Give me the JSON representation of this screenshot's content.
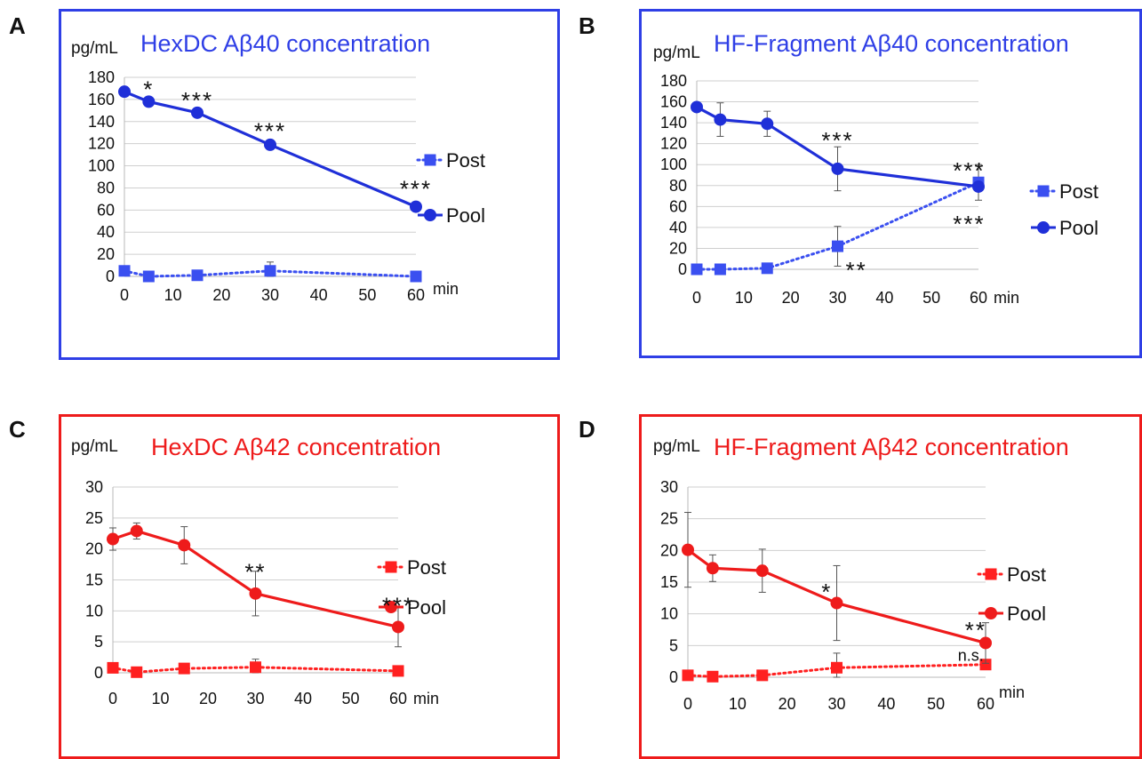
{
  "panels": [
    {
      "letter": "A",
      "ylabel": "pg/mL",
      "title": "HexDC Aβ40 concentration",
      "xlabel": "min",
      "accent": "#2f3fe6",
      "chart_data": {
        "type": "line",
        "title": "HexDC Aβ40 concentration",
        "ylabel": "pg/mL",
        "xlabel": "min",
        "xlim": [
          0,
          60
        ],
        "ylim": [
          0,
          180
        ],
        "xticks": [
          0,
          10,
          20,
          30,
          40,
          50,
          60
        ],
        "yticks": [
          0,
          20,
          40,
          60,
          80,
          100,
          120,
          140,
          160,
          180
        ],
        "grid": true,
        "legend": "right",
        "series": [
          {
            "name": "Post",
            "style": "dotted",
            "marker": "square",
            "color": "#3a4ff0",
            "x": [
              0,
              5,
              15,
              30,
              60
            ],
            "y": [
              5,
              0,
              1,
              5,
              0
            ],
            "err": [
              0,
              0,
              0,
              8,
              0
            ]
          },
          {
            "name": "Pool",
            "style": "solid",
            "marker": "circle",
            "color": "#1f2fd8",
            "x": [
              0,
              5,
              15,
              30,
              60
            ],
            "y": [
              167,
              158,
              148,
              119,
              63
            ],
            "err": [
              0,
              0,
              0,
              0,
              0
            ]
          }
        ],
        "annotations": [
          {
            "text": "*",
            "x": 5,
            "y": 170
          },
          {
            "text": "***",
            "x": 15,
            "y": 160
          },
          {
            "text": "***",
            "x": 30,
            "y": 132
          },
          {
            "text": "***",
            "x": 60,
            "y": 80
          }
        ]
      }
    },
    {
      "letter": "B",
      "ylabel": "pg/mL",
      "title": "HF-Fragment Aβ40 concentration",
      "xlabel": "min",
      "accent": "#2f3fe6",
      "chart_data": {
        "type": "line",
        "title": "HF-Fragment Aβ40 concentration",
        "ylabel": "pg/mL",
        "xlabel": "min",
        "xlim": [
          0,
          60
        ],
        "ylim": [
          0,
          180
        ],
        "xticks": [
          0,
          10,
          20,
          30,
          40,
          50,
          60
        ],
        "yticks": [
          0,
          20,
          40,
          60,
          80,
          100,
          120,
          140,
          160,
          180
        ],
        "grid": true,
        "legend": "right",
        "series": [
          {
            "name": "Post",
            "style": "dotted",
            "marker": "square",
            "color": "#3a4ff0",
            "x": [
              0,
              5,
              15,
              30,
              60
            ],
            "y": [
              0,
              0,
              1,
              22,
              83
            ],
            "err": [
              0,
              0,
              2,
              19,
              17
            ]
          },
          {
            "name": "Pool",
            "style": "solid",
            "marker": "circle",
            "color": "#1f2fd8",
            "x": [
              0,
              5,
              15,
              30,
              60
            ],
            "y": [
              155,
              143,
              139,
              96,
              79
            ],
            "err": [
              3,
              16,
              12,
              21,
              0
            ]
          }
        ],
        "annotations": [
          {
            "text": "***",
            "x": 30,
            "y": 124
          },
          {
            "text": "***",
            "x": 58,
            "y": 95
          },
          {
            "text": "***",
            "x": 58,
            "y": 44
          },
          {
            "text": "**",
            "x": 34,
            "y": 0
          }
        ]
      }
    },
    {
      "letter": "C",
      "ylabel": "pg/mL",
      "title": "HexDC Aβ42 concentration",
      "xlabel": "min",
      "accent": "#ee1b1b",
      "chart_data": {
        "type": "line",
        "title": "HexDC Aβ42 concentration",
        "ylabel": "pg/mL",
        "xlabel": "min",
        "xlim": [
          0,
          60
        ],
        "ylim": [
          0,
          30
        ],
        "xticks": [
          0,
          10,
          20,
          30,
          40,
          50,
          60
        ],
        "yticks": [
          0,
          5,
          10,
          15,
          20,
          25,
          30
        ],
        "grid": true,
        "legend": "right",
        "series": [
          {
            "name": "Post",
            "style": "dotted",
            "marker": "square",
            "color": "#ff2020",
            "x": [
              0,
              5,
              15,
              30,
              60
            ],
            "y": [
              0.8,
              0.1,
              0.7,
              0.9,
              0.3
            ],
            "err": [
              0,
              0,
              0,
              1.3,
              0
            ]
          },
          {
            "name": "Pool",
            "style": "solid",
            "marker": "circle",
            "color": "#ee1b1b",
            "x": [
              0,
              5,
              15,
              30,
              60
            ],
            "y": [
              21.6,
              22.9,
              20.6,
              12.8,
              7.4
            ],
            "err": [
              1.8,
              1.3,
              3.0,
              3.6,
              3.2
            ]
          }
        ],
        "annotations": [
          {
            "text": "**",
            "x": 30,
            "y": 16.4
          },
          {
            "text": "***",
            "x": 60,
            "y": 11.0
          }
        ]
      }
    },
    {
      "letter": "D",
      "ylabel": "pg/mL",
      "title": "HF-Fragment Aβ42 concentration",
      "xlabel": "min",
      "accent": "#ee1b1b",
      "chart_data": {
        "type": "line",
        "title": "HF-Fragment Aβ42 concentration",
        "ylabel": "pg/mL",
        "xlabel": "min",
        "xlim": [
          0,
          60
        ],
        "ylim": [
          0,
          30
        ],
        "xticks": [
          0,
          10,
          20,
          30,
          40,
          50,
          60
        ],
        "yticks": [
          0,
          5,
          10,
          15,
          20,
          25,
          30
        ],
        "grid": true,
        "legend": "right",
        "series": [
          {
            "name": "Post",
            "style": "dotted",
            "marker": "square",
            "color": "#ff2020",
            "x": [
              0,
              5,
              15,
              30,
              60
            ],
            "y": [
              0.3,
              0.1,
              0.3,
              1.5,
              2.0
            ],
            "err": [
              0,
              0,
              0,
              2.3,
              0.8
            ]
          },
          {
            "name": "Pool",
            "style": "solid",
            "marker": "circle",
            "color": "#ee1b1b",
            "x": [
              0,
              5,
              15,
              30,
              60
            ],
            "y": [
              20.1,
              17.2,
              16.8,
              11.7,
              5.4
            ],
            "err": [
              5.9,
              2.1,
              3.4,
              5.9,
              3.2
            ]
          }
        ],
        "annotations": [
          {
            "text": "*",
            "x": 28,
            "y": 13.6
          },
          {
            "text": "**",
            "x": 58,
            "y": 7.6
          },
          {
            "text": "n.s.",
            "x": 57,
            "y": 2.6
          }
        ]
      }
    }
  ]
}
